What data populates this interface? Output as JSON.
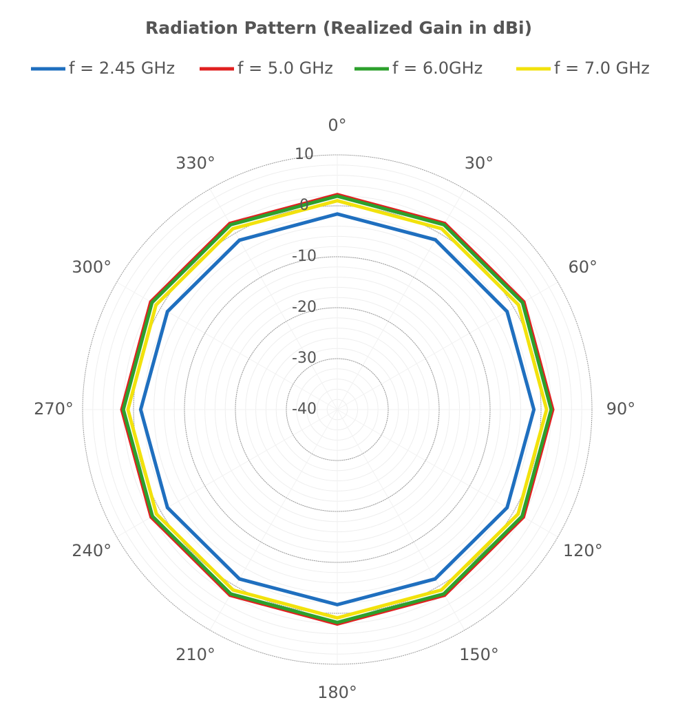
{
  "chart_data": {
    "type": "polar",
    "title": "Radiation Pattern (Realized Gain in dBi)",
    "theta": [
      0,
      30,
      60,
      90,
      120,
      150,
      180,
      210,
      240,
      270,
      300,
      330
    ],
    "thetaticks": [
      {
        "value": 0,
        "label": "0°"
      },
      {
        "value": 30,
        "label": "30°"
      },
      {
        "value": 60,
        "label": "60°"
      },
      {
        "value": 90,
        "label": "90°"
      },
      {
        "value": 120,
        "label": "120°"
      },
      {
        "value": 150,
        "label": "150°"
      },
      {
        "value": 180,
        "label": "180°"
      },
      {
        "value": 210,
        "label": "210°"
      },
      {
        "value": 240,
        "label": "240°"
      },
      {
        "value": 270,
        "label": "270°"
      },
      {
        "value": 300,
        "label": "300°"
      },
      {
        "value": 330,
        "label": "330°"
      }
    ],
    "rlim": [
      -40,
      10
    ],
    "rticks": [
      -40,
      -30,
      -20,
      -10,
      0,
      10
    ],
    "series": [
      {
        "name": "f = 2.45 GHz",
        "color": "#1f6fbf",
        "values": [
          -1.6,
          -1.5,
          -1.5,
          -1.4,
          -1.5,
          -1.6,
          -1.7,
          -1.6,
          -1.5,
          -1.4,
          -1.5,
          -1.6
        ]
      },
      {
        "name": "f = 5.0 GHz",
        "color": "#e02020",
        "values": [
          2.2,
          2.2,
          2.3,
          2.3,
          2.2,
          2.1,
          2.1,
          2.1,
          2.2,
          2.3,
          2.3,
          2.2
        ]
      },
      {
        "name": "f = 6.0GHz",
        "color": "#2ca02c",
        "values": [
          1.9,
          1.9,
          2.0,
          2.0,
          1.9,
          1.8,
          1.8,
          1.8,
          1.9,
          2.0,
          2.0,
          1.9
        ]
      },
      {
        "name": "f = 7.0 GHz",
        "color": "#f2e20c",
        "values": [
          1.0,
          1.0,
          1.1,
          1.1,
          1.0,
          0.9,
          0.9,
          0.9,
          1.0,
          1.1,
          1.1,
          1.0
        ]
      }
    ]
  }
}
